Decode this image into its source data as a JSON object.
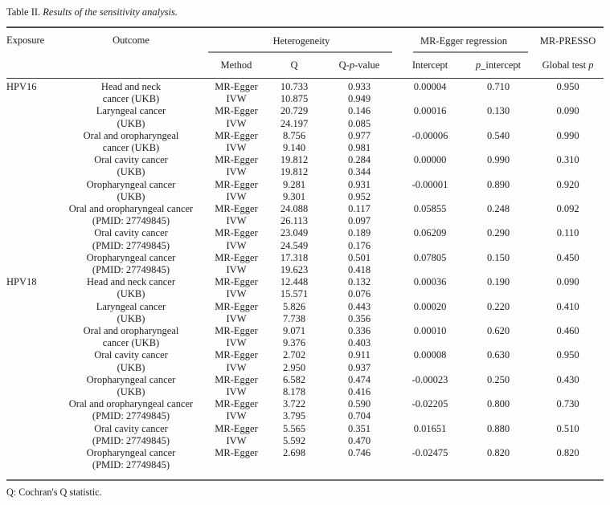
{
  "title": {
    "label": "Table II.",
    "caption": " Results of the sensitivity analysis."
  },
  "header": {
    "exposure": "Exposure",
    "outcome": "Outcome",
    "heterogeneity": "Heterogeneity",
    "mr_egger_regression": "MR-Egger regression",
    "mr_presso": "MR-PRESSO",
    "method": "Method",
    "q": "Q",
    "q_p_value": {
      "pre": "Q-",
      "p": "p",
      "post": "-value"
    },
    "intercept": "Intercept",
    "p_intercept": {
      "p": "p",
      "post": "_intercept"
    },
    "global_test_p": {
      "pre": "Global test ",
      "p": "p"
    }
  },
  "footnote": "Q: Cochran's Q statistic.",
  "groups": [
    {
      "exposure": "HPV16",
      "outcomes": [
        {
          "line1": "Head and neck",
          "line2": "cancer (UKB)",
          "methods": [
            [
              "MR-Egger",
              "10.733",
              "0.933"
            ],
            [
              "IVW",
              "10.875",
              "0.949"
            ]
          ],
          "intercept": "0.00004",
          "p_intercept": "0.710",
          "global_p": "0.950"
        },
        {
          "line1": "Laryngeal cancer",
          "line2": "(UKB)",
          "methods": [
            [
              "MR-Egger",
              "20.729",
              "0.146"
            ],
            [
              "IVW",
              "24.197",
              "0.085"
            ]
          ],
          "intercept": "0.00016",
          "p_intercept": "0.130",
          "global_p": "0.090"
        },
        {
          "line1": "Oral and oropharyngeal",
          "line2": "cancer (UKB)",
          "methods": [
            [
              "MR-Egger",
              "8.756",
              "0.977"
            ],
            [
              "IVW",
              "9.140",
              "0.981"
            ]
          ],
          "intercept": "-0.00006",
          "p_intercept": "0.540",
          "global_p": "0.990"
        },
        {
          "line1": "Oral cavity cancer",
          "line2": "(UKB)",
          "methods": [
            [
              "MR-Egger",
              "19.812",
              "0.284"
            ],
            [
              "IVW",
              "19.812",
              "0.344"
            ]
          ],
          "intercept": "0.00000",
          "p_intercept": "0.990",
          "global_p": "0.310"
        },
        {
          "line1": "Oropharyngeal cancer",
          "line2": "(UKB)",
          "methods": [
            [
              "MR-Egger",
              "9.281",
              "0.931"
            ],
            [
              "IVW",
              "9.301",
              "0.952"
            ]
          ],
          "intercept": "-0.00001",
          "p_intercept": "0.890",
          "global_p": "0.920"
        },
        {
          "line1": "Oral and oropharyngeal cancer",
          "line2": "(PMID: 27749845)",
          "methods": [
            [
              "MR-Egger",
              "24.088",
              "0.117"
            ],
            [
              "IVW",
              "26.113",
              "0.097"
            ]
          ],
          "intercept": "0.05855",
          "p_intercept": "0.248",
          "global_p": "0.092"
        },
        {
          "line1": "Oral cavity cancer",
          "line2": "(PMID: 27749845)",
          "methods": [
            [
              "MR-Egger",
              "23.049",
              "0.189"
            ],
            [
              "IVW",
              "24.549",
              "0.176"
            ]
          ],
          "intercept": "0.06209",
          "p_intercept": "0.290",
          "global_p": "0.110"
        },
        {
          "line1": "Oropharyngeal cancer",
          "line2": "(PMID: 27749845)",
          "methods": [
            [
              "MR-Egger",
              "17.318",
              "0.501"
            ],
            [
              "IVW",
              "19.623",
              "0.418"
            ]
          ],
          "intercept": "0.07805",
          "p_intercept": "0.150",
          "global_p": "0.450"
        }
      ]
    },
    {
      "exposure": "HPV18",
      "outcomes": [
        {
          "line1": "Head and neck cancer",
          "line2": "(UKB)",
          "methods": [
            [
              "MR-Egger",
              "12.448",
              "0.132"
            ],
            [
              "IVW",
              "15.571",
              "0.076"
            ]
          ],
          "intercept": "0.00036",
          "p_intercept": "0.190",
          "global_p": "0.090"
        },
        {
          "line1": "Laryngeal cancer",
          "line2": "(UKB)",
          "methods": [
            [
              "MR-Egger",
              "5.826",
              "0.443"
            ],
            [
              "IVW",
              "7.738",
              "0.356"
            ]
          ],
          "intercept": "0.00020",
          "p_intercept": "0.220",
          "global_p": "0.410"
        },
        {
          "line1": "Oral and oropharyngeal",
          "line2": "cancer (UKB)",
          "methods": [
            [
              "MR-Egger",
              "9.071",
              "0.336"
            ],
            [
              "IVW",
              "9.376",
              "0.403"
            ]
          ],
          "intercept": "0.00010",
          "p_intercept": "0.620",
          "global_p": "0.460"
        },
        {
          "line1": "Oral cavity cancer",
          "line2": "(UKB)",
          "methods": [
            [
              "MR-Egger",
              "2.702",
              "0.911"
            ],
            [
              "IVW",
              "2.950",
              "0.937"
            ]
          ],
          "intercept": "0.00008",
          "p_intercept": "0.630",
          "global_p": "0.950"
        },
        {
          "line1": "Oropharyngeal cancer",
          "line2": "(UKB)",
          "methods": [
            [
              "MR-Egger",
              "6.582",
              "0.474"
            ],
            [
              "IVW",
              "8.178",
              "0.416"
            ]
          ],
          "intercept": "-0.00023",
          "p_intercept": "0.250",
          "global_p": "0.430"
        },
        {
          "line1": "Oral and oropharyngeal cancer",
          "line2": "(PMID: 27749845)",
          "methods": [
            [
              "MR-Egger",
              "3.722",
              "0.590"
            ],
            [
              "IVW",
              "3.795",
              "0.704"
            ]
          ],
          "intercept": "-0.02205",
          "p_intercept": "0.800",
          "global_p": "0.730"
        },
        {
          "line1": "Oral cavity cancer",
          "line2": "(PMID: 27749845)",
          "methods": [
            [
              "MR-Egger",
              "5.565",
              "0.351"
            ],
            [
              "IVW",
              "5.592",
              "0.470"
            ]
          ],
          "intercept": "0.01651",
          "p_intercept": "0.880",
          "global_p": "0.510"
        },
        {
          "line1": "Oropharyngeal cancer",
          "line2": "(PMID: 27749845)",
          "methods": [
            [
              "MR-Egger",
              "2.698",
              "0.746"
            ]
          ],
          "intercept": "-0.02475",
          "p_intercept": "0.820",
          "global_p": "0.820"
        }
      ]
    }
  ]
}
